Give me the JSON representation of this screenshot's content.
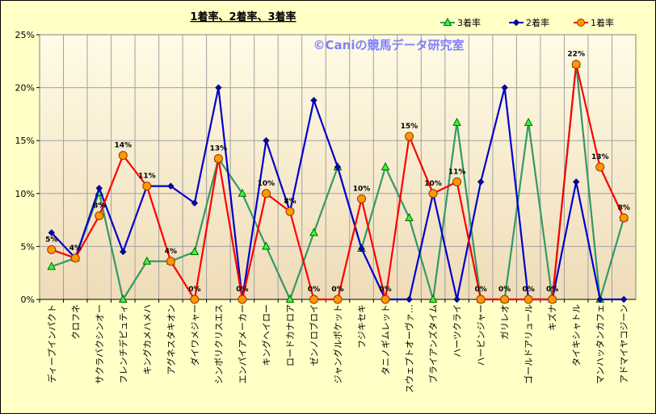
{
  "chart_data": {
    "type": "line",
    "title": "1着率、2着率、3着率",
    "watermark": "©Caniの競馬データ研究室",
    "ylim": [
      0,
      25
    ],
    "yticks": [
      "0%",
      "5%",
      "10%",
      "15%",
      "20%",
      "25%"
    ],
    "grid": true,
    "legend_position": "top-right",
    "categories": [
      "ディープインパクト",
      "クロフネ",
      "サクラバクシンオー",
      "フレンチデピュティ",
      "キングカメハメハ",
      "アグネスタキオン",
      "ダイワメジャー",
      "シンボリクリスエス",
      "エンパイアメーカー",
      "キングヘイロー",
      "ロードカナロア",
      "ゼンノロブロイ",
      "ジャングルポケット",
      "フジキセキ",
      "タニノギムレット",
      "スウェプトオーヴァ…",
      "ブライアンズタイム",
      "ハーツクライ",
      "ハービンジャー",
      "ガリレオ",
      "ゴールドアリュール",
      "キズナ",
      "タイキシャトル",
      "マンハッタンカフェ",
      "アドマイヤコジーン"
    ],
    "series": [
      {
        "name": "3着率",
        "color": "#339966",
        "marker": "triangle",
        "values": [
          3.1,
          3.9,
          10.1,
          0,
          3.6,
          3.6,
          4.5,
          13.3,
          10.0,
          5.0,
          0,
          6.3,
          12.5,
          4.8,
          12.5,
          7.7,
          0,
          16.7,
          0,
          0,
          16.7,
          0,
          22.2,
          0,
          7.7
        ]
      },
      {
        "name": "2着率",
        "color": "#0000cc",
        "marker": "diamond",
        "values": [
          6.3,
          3.9,
          10.5,
          4.5,
          10.7,
          10.7,
          9.1,
          20.0,
          0,
          15.0,
          8.3,
          18.8,
          12.5,
          4.8,
          0,
          0,
          10.0,
          0,
          11.1,
          20.0,
          0,
          0,
          11.1,
          0,
          0
        ]
      },
      {
        "name": "1着率",
        "color": "#ff0000",
        "marker": "circle",
        "values": [
          4.7,
          3.9,
          7.9,
          13.6,
          10.7,
          3.6,
          0,
          13.3,
          0,
          10.0,
          8.3,
          0,
          0,
          9.5,
          0,
          15.4,
          10.0,
          11.1,
          0,
          0,
          0,
          0,
          22.2,
          12.5,
          7.7
        ],
        "labels": [
          "5%",
          "4%",
          "8%",
          "14%",
          "11%",
          "4%",
          "0%",
          "13%",
          "0%",
          "10%",
          "8%",
          "0%",
          "0%",
          "10%",
          "0%",
          "15%",
          "10%",
          "11%",
          "0%",
          "0%",
          "0%",
          "0%",
          "22%",
          "13%",
          "8%"
        ]
      }
    ]
  }
}
